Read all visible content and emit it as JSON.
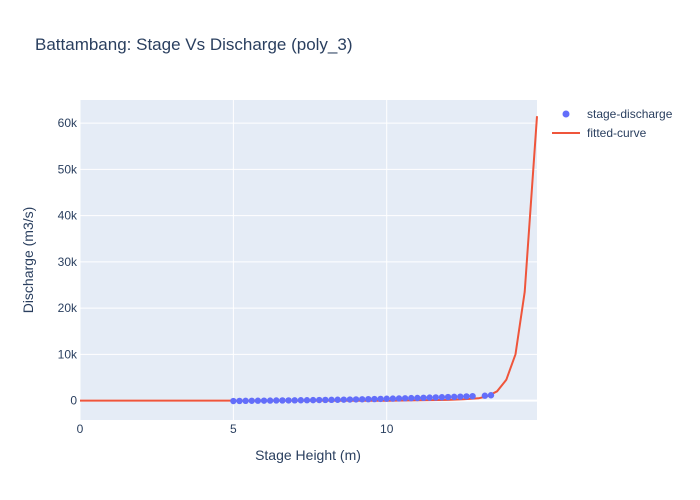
{
  "chart_data": {
    "type": "scatter",
    "title": "Battambang: Stage Vs Discharge (poly_3)",
    "xlabel": "Stage Height (m)",
    "ylabel": "Discharge (m3/s)",
    "xlim": [
      0,
      14.9
    ],
    "ylim": [
      -4200,
      65000
    ],
    "x_ticks": [
      0,
      5,
      10
    ],
    "x_tick_labels": [
      "0",
      "5",
      "10"
    ],
    "y_ticks": [
      0,
      10000,
      20000,
      30000,
      40000,
      50000,
      60000
    ],
    "y_tick_labels": [
      "0",
      "10k",
      "20k",
      "30k",
      "40k",
      "50k",
      "60k"
    ],
    "grid": true,
    "legend_position": "top-right",
    "colors": {
      "plot_bg": "#e5ecf6",
      "grid": "#ffffff",
      "scatter": "#636efa",
      "line": "#ef553b",
      "text": "#2a3f5f"
    },
    "series": [
      {
        "name": "stage-discharge",
        "mode": "markers",
        "x": [
          5.0,
          5.2,
          5.4,
          5.6,
          5.8,
          6.0,
          6.2,
          6.4,
          6.6,
          6.8,
          7.0,
          7.2,
          7.4,
          7.6,
          7.8,
          8.0,
          8.2,
          8.4,
          8.6,
          8.8,
          9.0,
          9.2,
          9.4,
          9.6,
          9.8,
          10.0,
          10.2,
          10.4,
          10.6,
          10.8,
          11.0,
          11.2,
          11.4,
          11.6,
          11.8,
          12.0,
          12.2,
          12.4,
          12.6,
          12.8,
          13.2,
          13.4
        ],
        "y": [
          -100,
          -80,
          -60,
          -40,
          -30,
          -20,
          0,
          20,
          30,
          40,
          50,
          70,
          80,
          100,
          120,
          140,
          160,
          180,
          200,
          230,
          250,
          280,
          300,
          330,
          360,
          400,
          430,
          460,
          500,
          530,
          560,
          600,
          640,
          680,
          720,
          760,
          800,
          850,
          900,
          950,
          1050,
          1150
        ]
      },
      {
        "name": "fitted-curve",
        "mode": "lines",
        "x": [
          0,
          5,
          10,
          11,
          12,
          12.5,
          13,
          13.3,
          13.6,
          13.9,
          14.2,
          14.5,
          14.9
        ],
        "y": [
          0,
          0,
          -50,
          50,
          150,
          300,
          500,
          1000,
          2000,
          4500,
          10000,
          23500,
          61500
        ]
      }
    ]
  }
}
